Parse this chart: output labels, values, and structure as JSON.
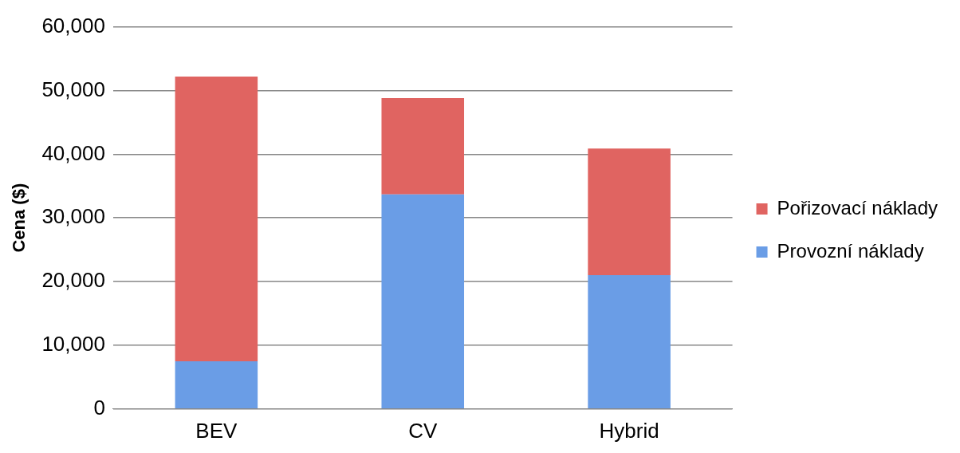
{
  "chart_data": {
    "type": "bar",
    "ylabel": "Cena ($)",
    "categories": [
      "BEV",
      "CV",
      "Hybrid"
    ],
    "stacked": true,
    "series": [
      {
        "name": "Provozní náklady",
        "color": "#6a9de6",
        "values": [
          7500,
          33700,
          21000
        ]
      },
      {
        "name": "Pořizovací náklady",
        "color": "#e06461",
        "values": [
          44700,
          15100,
          19900
        ]
      }
    ],
    "ylim": [
      0,
      60000
    ],
    "yticks": [
      {
        "value": 0,
        "label": "0"
      },
      {
        "value": 10000,
        "label": "10,000"
      },
      {
        "value": 20000,
        "label": "20,000"
      },
      {
        "value": 30000,
        "label": "30,000"
      },
      {
        "value": 40000,
        "label": "40,000"
      },
      {
        "value": 50000,
        "label": "50,000"
      },
      {
        "value": 60000,
        "label": "60,000"
      }
    ],
    "grid": "y",
    "legend": "right"
  }
}
